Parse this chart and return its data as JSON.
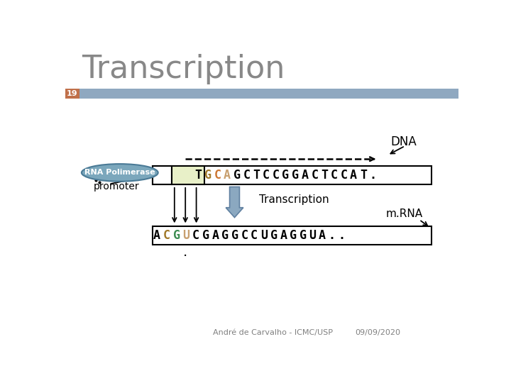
{
  "title": "Transcription",
  "slide_number": "19",
  "title_color": "#888888",
  "title_font_size": 32,
  "header_bar_color": "#8FA8C0",
  "slide_number_bg": "#C0704A",
  "background_color": "#FFFFFF",
  "dna_sequence": [
    "T",
    "G",
    "C",
    "A",
    "G",
    "C",
    "T",
    "C",
    "C",
    "G",
    "G",
    "A",
    "C",
    "T",
    "C",
    "C",
    "A",
    "T",
    "."
  ],
  "dna_colors": [
    "#000000",
    "#A07828",
    "#CC7733",
    "#C8A070",
    "#000000",
    "#000000",
    "#000000",
    "#000000",
    "#000000",
    "#000000",
    "#000000",
    "#000000",
    "#000000",
    "#000000",
    "#000000",
    "#000000",
    "#000000",
    "#000000",
    "#000000"
  ],
  "rna_sequence": [
    "A",
    "C",
    "G",
    "U",
    "C",
    "G",
    "A",
    "G",
    "G",
    "C",
    "C",
    "U",
    "G",
    "A",
    "G",
    "G",
    "U",
    "A",
    ".",
    "."
  ],
  "rna_colors": [
    "#000000",
    "#A07828",
    "#3A8B50",
    "#C8A070",
    "#000000",
    "#000000",
    "#000000",
    "#000000",
    "#000000",
    "#000000",
    "#000000",
    "#000000",
    "#000000",
    "#000000",
    "#000000",
    "#000000",
    "#000000",
    "#000000",
    "#000000",
    "#000000"
  ],
  "footer_left": "André de Carvalho - ICMC/USP",
  "footer_right": "09/09/2020",
  "rna_pol_label": "RNA Polimerase",
  "promoter_label": "promoter",
  "transcription_label": "Transcription",
  "dna_label": "DNA",
  "mrna_label": "m.RNA",
  "dna_box_outline": "#000000",
  "rna_box_outline": "#000000",
  "pol_ellipse_color": "#7BA7BC",
  "pol_ellipse_edge": "#4A7A96",
  "small_box_fill": "#E8F0C8",
  "transcription_arrow_fill": "#8BA8C0",
  "transcription_arrow_edge": "#6080A0"
}
